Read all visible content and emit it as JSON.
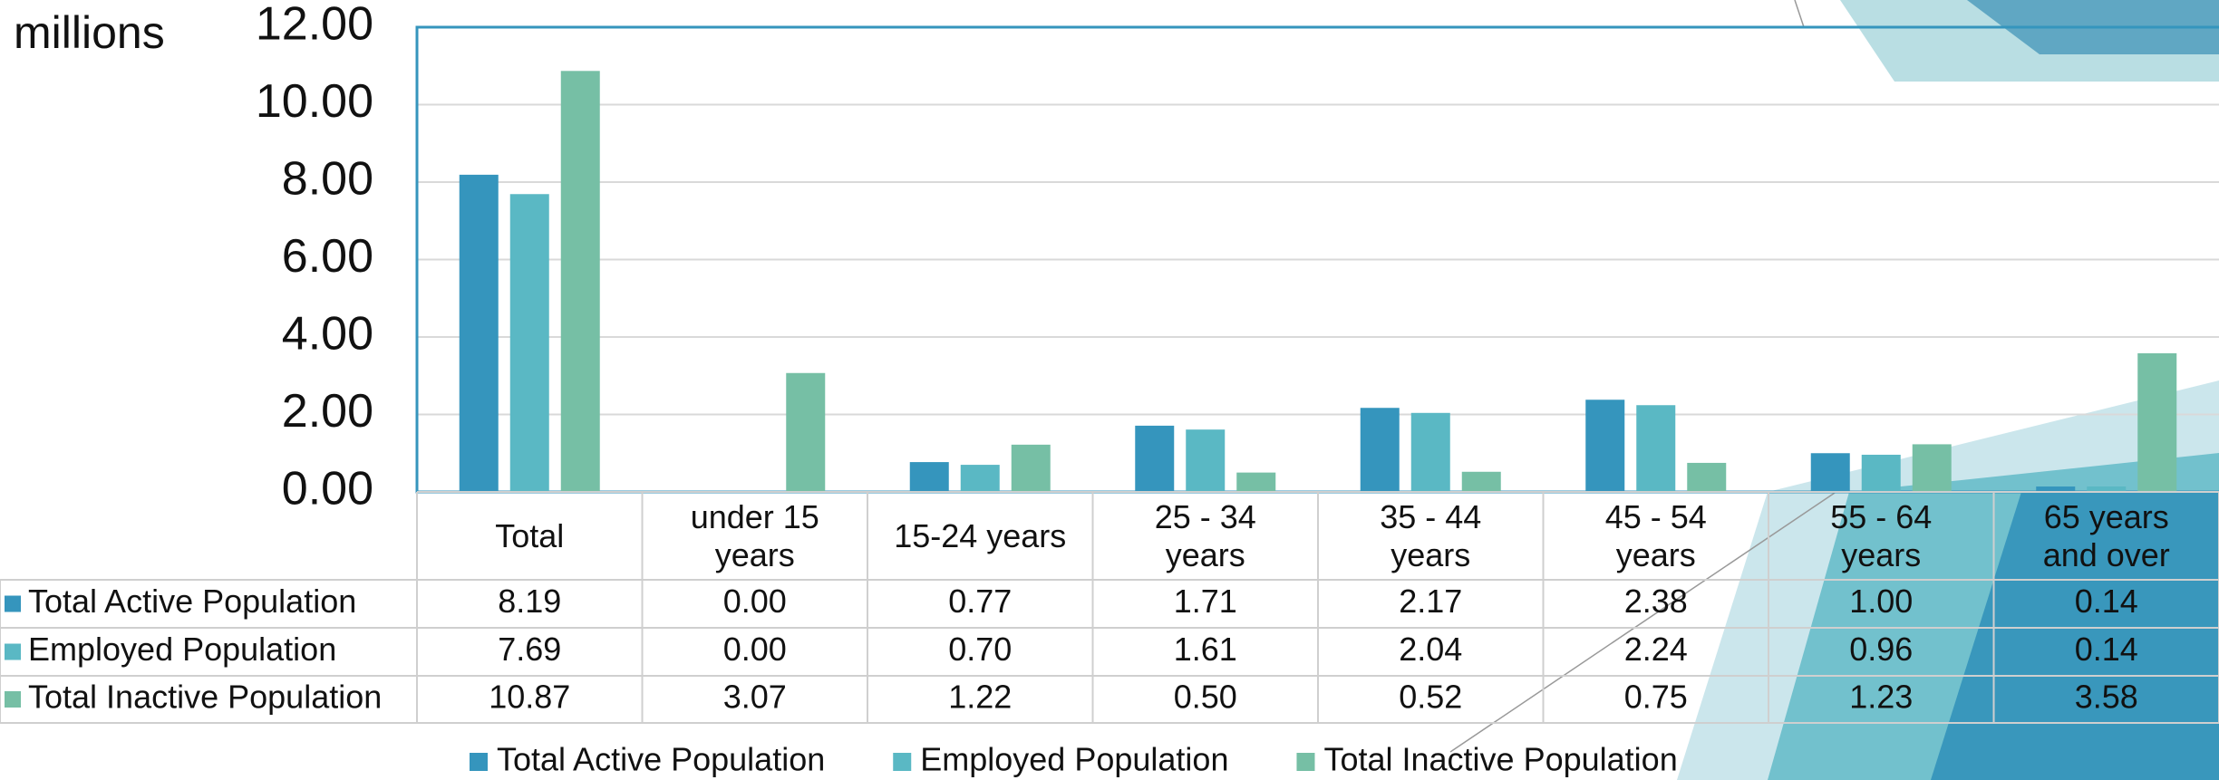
{
  "chart_data": {
    "type": "bar",
    "ylabel": "millions",
    "categories": [
      "Total",
      "under 15 years",
      "15-24 years",
      "25 - 34 years",
      "35 - 44 years",
      "45 - 54 years",
      "55 - 64 years",
      "65 years and over"
    ],
    "series": [
      {
        "name": "Total Active Population",
        "color": "#3595bd",
        "values": [
          8.19,
          0,
          0.77,
          1.71,
          2.17,
          2.38,
          1,
          0.14
        ],
        "value_labels": [
          "8.19",
          "0.00",
          "0.77",
          "1.71",
          "2.17",
          "2.38",
          "1.00",
          "0.14"
        ]
      },
      {
        "name": "Employed Population",
        "color": "#5ab8c4",
        "values": [
          7.69,
          0,
          0.7,
          1.61,
          2.04,
          2.24,
          0.96,
          0.14
        ],
        "value_labels": [
          "7.69",
          "0.00",
          "0.70",
          "1.61",
          "2.04",
          "2.24",
          "0.96",
          "0.14"
        ]
      },
      {
        "name": "Total Inactive Population",
        "color": "#76bfa5",
        "values": [
          10.87,
          3.07,
          1.22,
          0.5,
          0.52,
          0.75,
          1.23,
          3.58
        ],
        "value_labels": [
          "10.87",
          "3.07",
          "1.22",
          "0.50",
          "0.52",
          "0.75",
          "1.23",
          "3.58"
        ]
      }
    ],
    "ylim": [
      0,
      12
    ],
    "yticks": [
      {
        "value": 0,
        "label": "0.00"
      },
      {
        "value": 2,
        "label": "2.00"
      },
      {
        "value": 4,
        "label": "4.00"
      },
      {
        "value": 6,
        "label": "6.00"
      },
      {
        "value": 8,
        "label": "8.00"
      },
      {
        "value": 10,
        "label": "10.00"
      },
      {
        "value": 12,
        "label": "12.00"
      }
    ],
    "grid": true
  }
}
